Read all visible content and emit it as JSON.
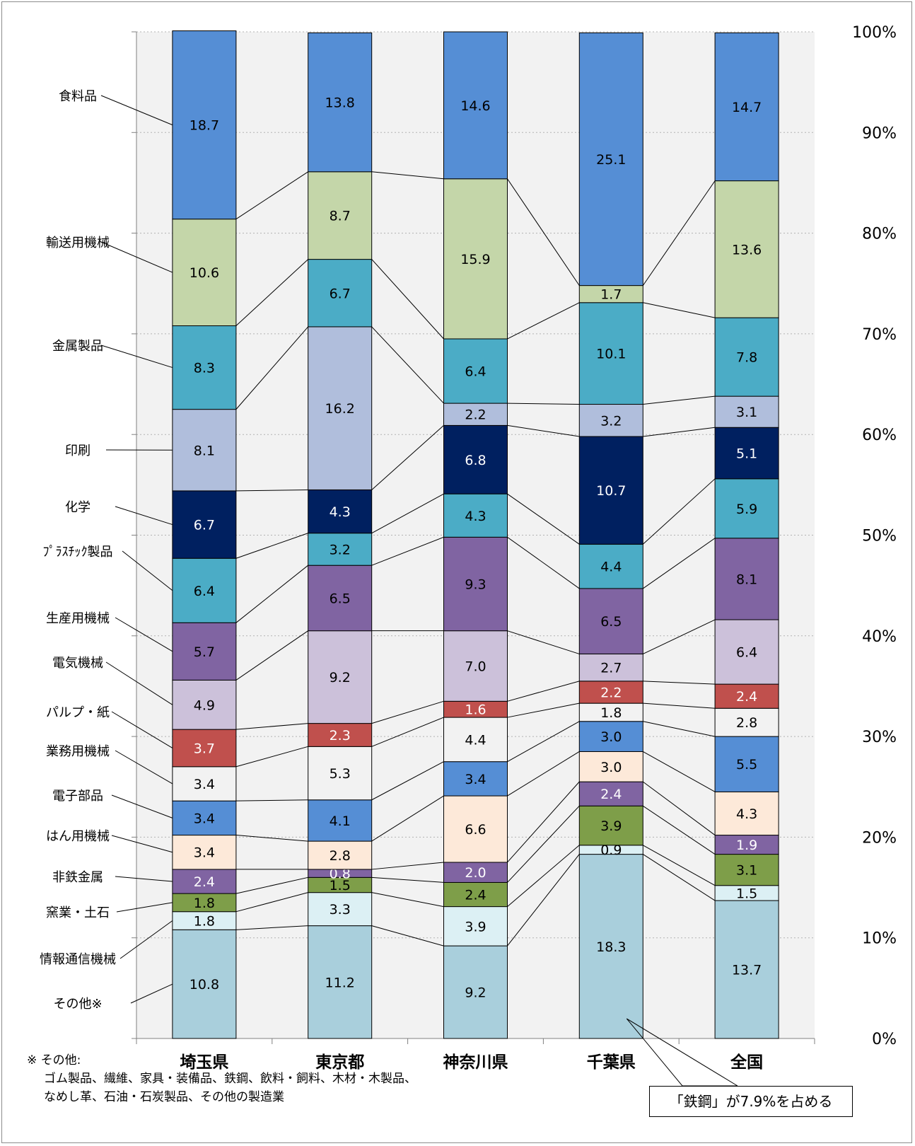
{
  "chart_data": {
    "type": "bar",
    "stacked": true,
    "percent": true,
    "categories": [
      "埼玉県",
      "東京都",
      "神奈川県",
      "千葉県",
      "全国"
    ],
    "series": [
      {
        "name": "その他※",
        "values": [
          10.8,
          11.2,
          9.2,
          18.3,
          13.7
        ],
        "color": "#a9cfdc",
        "label_color": "#000000"
      },
      {
        "name": "情報通信機械",
        "values": [
          1.8,
          3.3,
          3.9,
          0.9,
          1.5
        ],
        "color": "#dcf0f4",
        "label_color": "#000000"
      },
      {
        "name": "窯業・土石",
        "values": [
          1.8,
          1.5,
          2.4,
          3.9,
          3.1
        ],
        "color": "#7e9e49",
        "label_color": "#000000"
      },
      {
        "name": "非鉄金属",
        "values": [
          2.4,
          0.8,
          2.0,
          2.4,
          1.9
        ],
        "color": "#8064a2",
        "label_color": "#ffffff"
      },
      {
        "name": "はん用機械",
        "values": [
          3.4,
          2.8,
          6.6,
          3.0,
          4.3
        ],
        "color": "#fde9d9",
        "label_color": "#000000"
      },
      {
        "name": "電子部品",
        "values": [
          3.4,
          4.1,
          3.4,
          3.0,
          5.5
        ],
        "color": "#558ed5",
        "label_color": "#000000"
      },
      {
        "name": "業務用機械",
        "values": [
          3.4,
          5.3,
          4.4,
          1.8,
          2.8
        ],
        "color": "#f2f2f2",
        "label_color": "#000000"
      },
      {
        "name": "パルプ・紙",
        "values": [
          3.7,
          2.3,
          1.6,
          2.2,
          2.4
        ],
        "color": "#c0504d",
        "label_color": "#ffffff"
      },
      {
        "name": "電気機械",
        "values": [
          4.9,
          9.2,
          7.0,
          2.7,
          6.4
        ],
        "color": "#ccc1da",
        "label_color": "#000000"
      },
      {
        "name": "生産用機械",
        "values": [
          5.7,
          6.5,
          9.3,
          6.5,
          8.1
        ],
        "color": "#8064a2",
        "label_color": "#000000"
      },
      {
        "name": "ﾌﾟﾗｽﾁｯｸ製品",
        "values": [
          6.4,
          3.2,
          4.3,
          4.4,
          5.9
        ],
        "color": "#4bacc6",
        "label_color": "#000000"
      },
      {
        "name": "化学",
        "values": [
          6.7,
          4.3,
          6.8,
          10.7,
          5.1
        ],
        "color": "#002060",
        "label_color": "#ffffff"
      },
      {
        "name": "印刷",
        "values": [
          8.1,
          16.2,
          2.2,
          3.2,
          3.1
        ],
        "color": "#b0bedc",
        "label_color": "#000000"
      },
      {
        "name": "金属製品",
        "values": [
          8.3,
          6.7,
          6.4,
          10.1,
          7.8
        ],
        "color": "#4bacc6",
        "label_color": "#000000"
      },
      {
        "name": "輸送用機械",
        "values": [
          10.6,
          8.7,
          15.9,
          1.7,
          13.6
        ],
        "color": "#c4d6a9",
        "label_color": "#000000"
      },
      {
        "name": "食料品",
        "values": [
          18.7,
          13.8,
          14.6,
          25.1,
          14.7
        ],
        "color": "#558ed5",
        "label_color": "#000000"
      }
    ],
    "y_ticks": [
      "0%",
      "10%",
      "20%",
      "30%",
      "40%",
      "50%",
      "60%",
      "70%",
      "80%",
      "90%",
      "100%"
    ],
    "ylim": [
      0,
      100
    ],
    "grid": true,
    "legend": "left (labels with leader lines)"
  },
  "footnote": {
    "head": "※ その他:",
    "line1": "ゴム製品、繊維、家具・装備品、鉄鋼、飲料・飼料、木材・木製品、",
    "line2": "なめし革、石油・石炭製品、その他の製造業"
  },
  "callout": {
    "text": "「鉄鋼」が7.9%を占める"
  }
}
